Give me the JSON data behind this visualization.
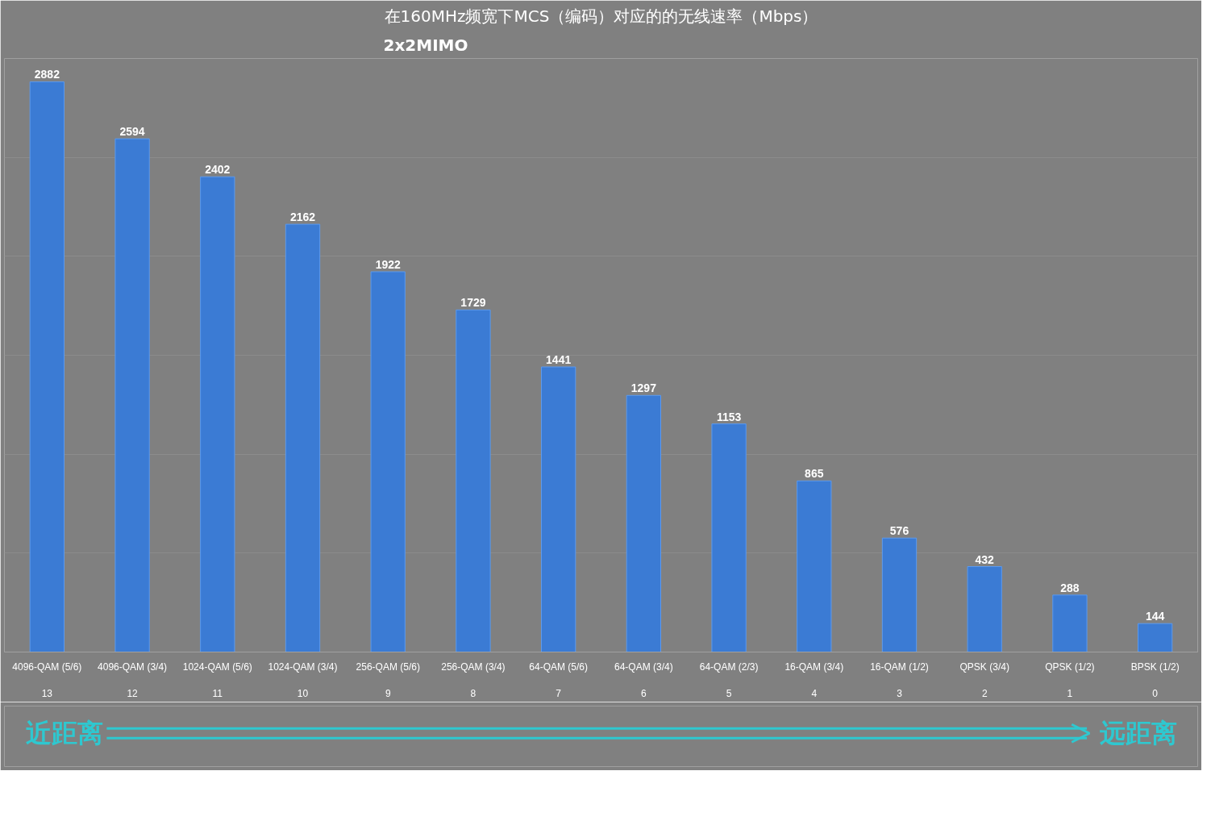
{
  "chart_data": {
    "type": "bar",
    "title": "在160MHz频宽下MCS（编码）对应的的无线速率（Mbps）",
    "subtitle": "2x2MIMO",
    "categories": [
      "4096-QAM (5/6)\n\n13",
      "4096-QAM (3/4)\n\n12",
      "1024-QAM (5/6)\n\n11",
      "1024-QAM (3/4)\n\n10",
      "256-QAM (5/6)\n\n9",
      "256-QAM (3/4)\n\n8",
      "64-QAM (5/6)\n\n7",
      "64-QAM (3/4)\n\n6",
      "64-QAM (2/3)\n\n5",
      "16-QAM (3/4)\n\n4",
      "16-QAM (1/2)\n\n3",
      "QPSK (3/4)\n\n2",
      "QPSK (1/2)\n\n1",
      "BPSK (1/2)\n\n0"
    ],
    "values": [
      2882,
      2594,
      2402,
      2162,
      1922,
      1729,
      1441,
      1297,
      1153,
      865,
      576,
      432,
      288,
      144
    ],
    "color": "#3b7bd4",
    "ylim": [
      0,
      3000
    ],
    "yticks": [
      {
        "value": 0,
        "label": null
      },
      {
        "value": 500,
        "label": null
      },
      {
        "value": 1000,
        "label": null
      },
      {
        "value": 1500,
        "label": null
      },
      {
        "value": 2000,
        "label": null
      },
      {
        "value": 2500,
        "label": null
      },
      {
        "value": 3000,
        "label": null
      }
    ],
    "tick_labels": "x",
    "grid": "y",
    "data_labels": true,
    "annotations": [
      "近距离",
      "远距离"
    ]
  }
}
